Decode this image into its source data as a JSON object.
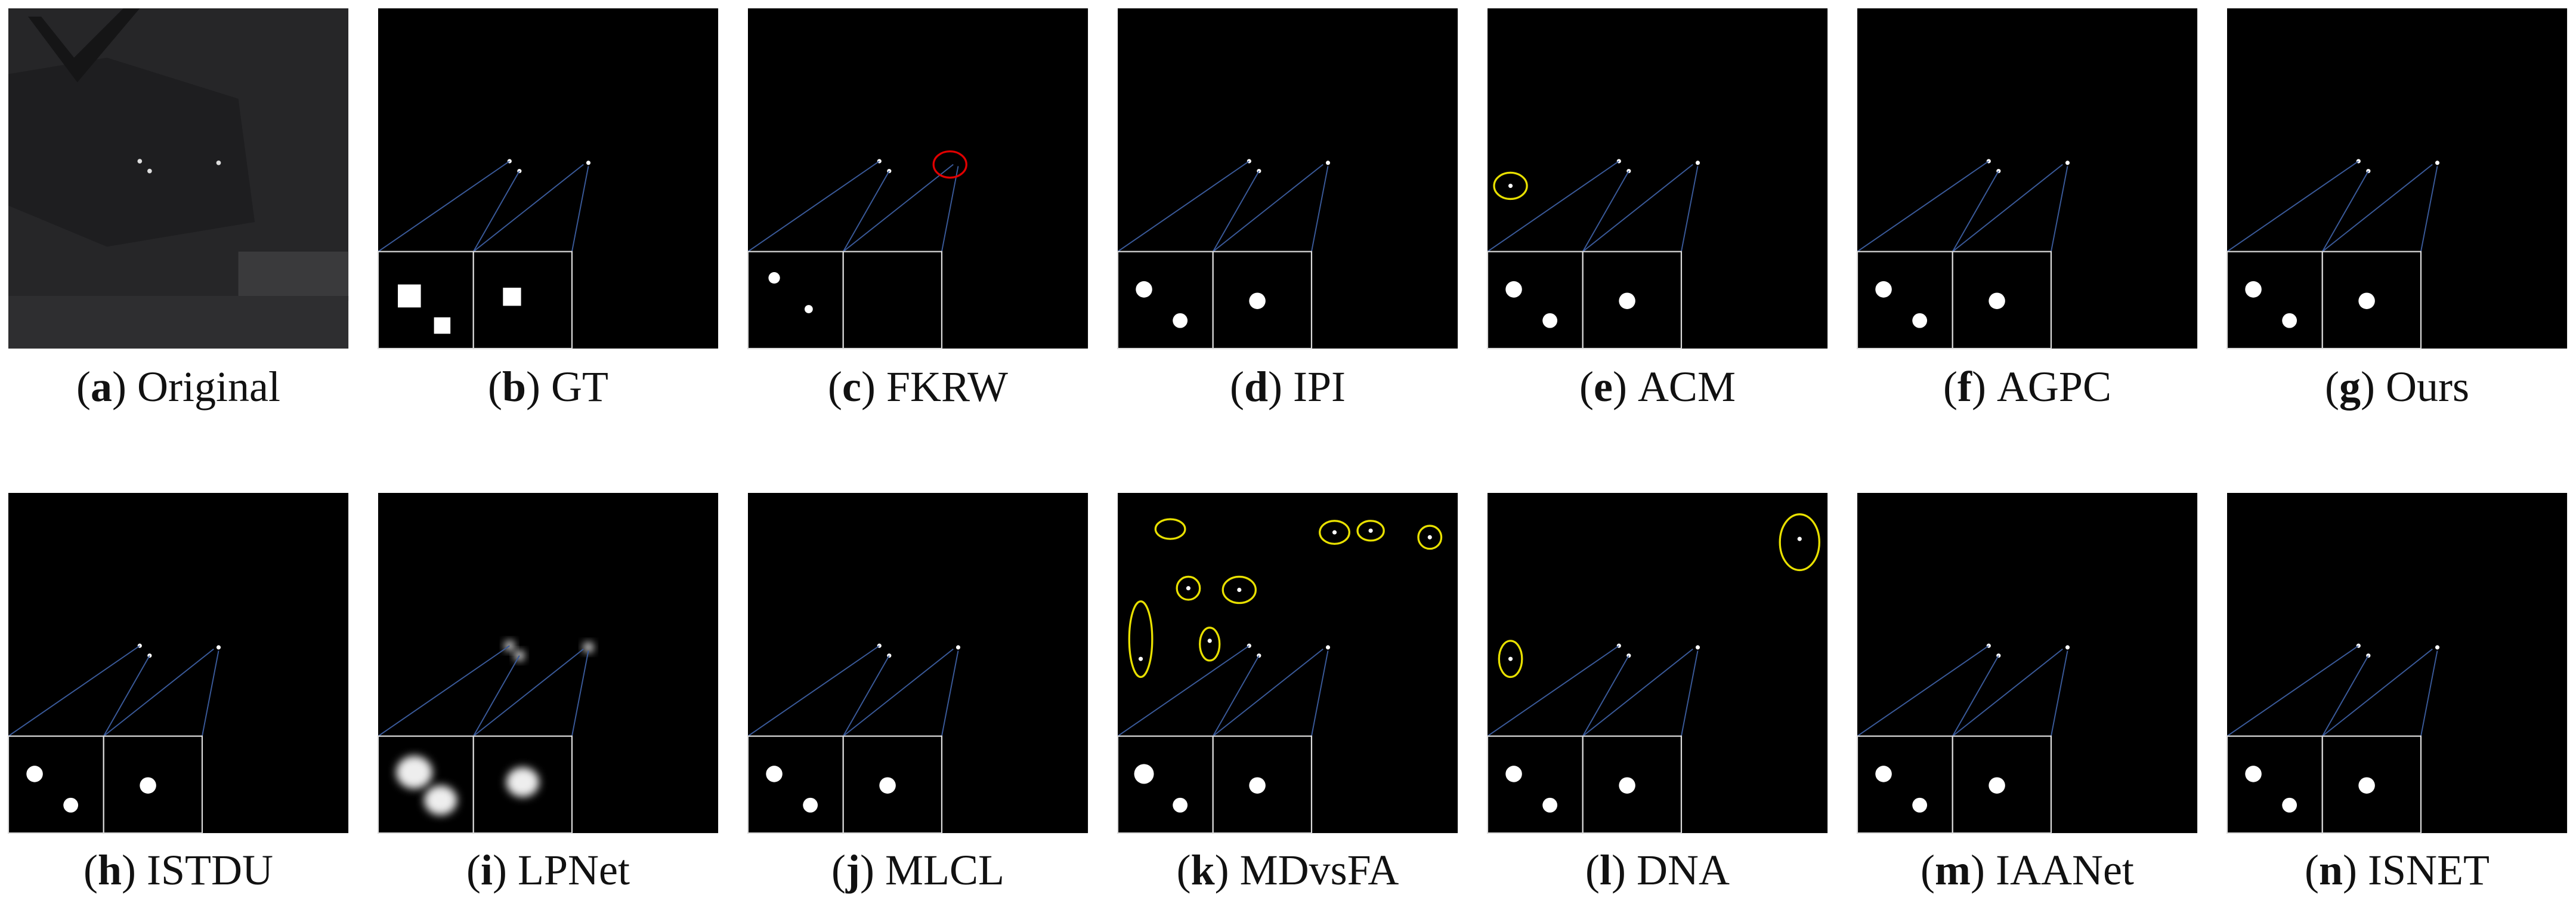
{
  "panels": [
    {
      "open": "(",
      "letter": "a",
      "close": ")",
      "name": "Original"
    },
    {
      "open": "(",
      "letter": "b",
      "close": ")",
      "name": "GT"
    },
    {
      "open": "(",
      "letter": "c",
      "close": ")",
      "name": "FKRW"
    },
    {
      "open": "(",
      "letter": "d",
      "close": ")",
      "name": "IPI"
    },
    {
      "open": "(",
      "letter": "e",
      "close": ")",
      "name": "ACM"
    },
    {
      "open": "(",
      "letter": "f",
      "close": ")",
      "name": "AGPC"
    },
    {
      "open": "(",
      "letter": "g",
      "close": ")",
      "name": "Ours"
    },
    {
      "open": "(",
      "letter": "h",
      "close": ")",
      "name": "ISTDU"
    },
    {
      "open": "(",
      "letter": "i",
      "close": ")",
      "name": "LPNet"
    },
    {
      "open": "(",
      "letter": "j",
      "close": ")",
      "name": "MLCL"
    },
    {
      "open": "(",
      "letter": "k",
      "close": ")",
      "name": "MDvsFA"
    },
    {
      "open": "(",
      "letter": "l",
      "close": ")",
      "name": "DNA"
    },
    {
      "open": "(",
      "letter": "m",
      "close": ")",
      "name": "IAANet"
    },
    {
      "open": "(",
      "letter": "n",
      "close": ")",
      "name": "ISNET"
    }
  ]
}
